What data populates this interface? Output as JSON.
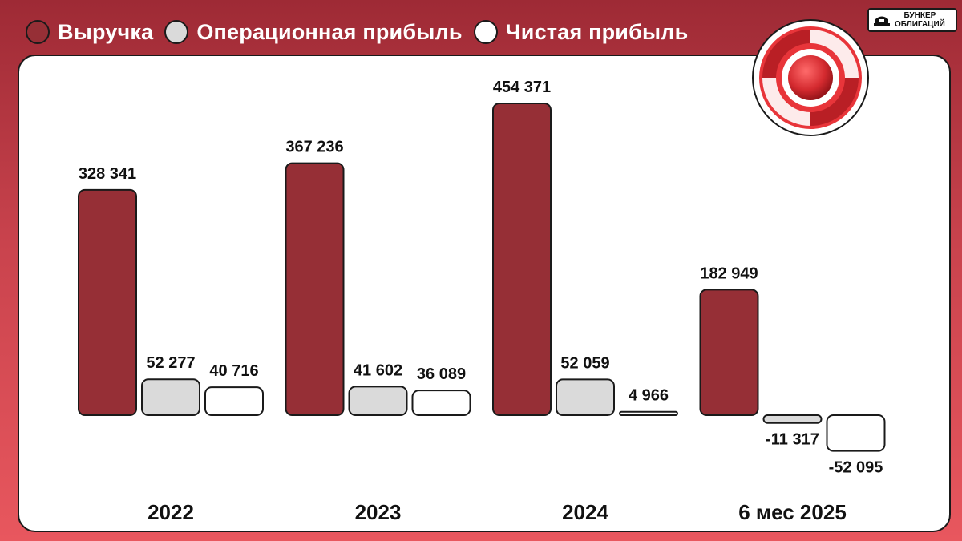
{
  "legend": [
    {
      "label": "Выручка",
      "color": "#962f36"
    },
    {
      "label": "Операционная прибыль",
      "color": "#dadada"
    },
    {
      "label": "Чистая прибыль",
      "color": "#ffffff"
    }
  ],
  "brand": {
    "line1": "БУНКЕР",
    "line2": "ОБЛИГАЦИЙ",
    "icon": "bunker-icon"
  },
  "logo": {
    "icon": "swirl-logo-icon"
  },
  "chart_data": {
    "type": "bar",
    "categories": [
      "2022",
      "2023",
      "2024",
      "6 мес 2025"
    ],
    "series": [
      {
        "name": "Выручка",
        "values": [
          328341,
          367236,
          454371,
          182949
        ],
        "labels": [
          "328 341",
          "367 236",
          "454 371",
          "182 949"
        ],
        "color": "#962f36"
      },
      {
        "name": "Операционная прибыль",
        "values": [
          52277,
          41602,
          52059,
          -11317
        ],
        "labels": [
          "52 277",
          "41 602",
          "52 059",
          "-11 317"
        ],
        "color": "#dadada"
      },
      {
        "name": "Чистая прибыль",
        "values": [
          40716,
          36089,
          4966,
          -52095
        ],
        "labels": [
          "40 716",
          "36 089",
          "4 966",
          "-52 095"
        ],
        "color": "#ffffff"
      }
    ],
    "title": "",
    "xlabel": "",
    "ylabel": "",
    "ylim": [
      -52095,
      454371
    ],
    "grid": false,
    "legend_position": "top-left"
  }
}
